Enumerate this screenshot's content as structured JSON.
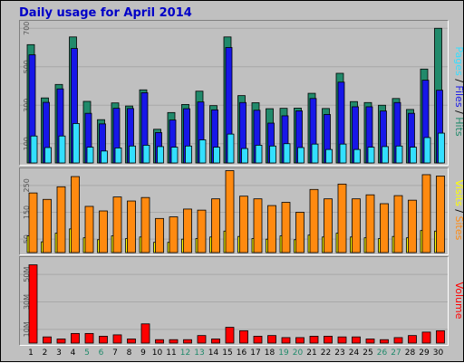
{
  "window": {
    "title": "Daily usage for April 2014"
  },
  "colors": {
    "hits": "#218a6b",
    "files": "#1717e8",
    "pages": "#33dfff",
    "visits": "#ffff00",
    "sites": "#ff8a10",
    "volume": "#ff0000",
    "weekend_tick": "#218a6b",
    "weekday_tick": "#000000"
  },
  "chart_data": [
    {
      "type": "bar",
      "title": "Daily usage for April 2014",
      "panel": "hits-files-pages",
      "categories": [
        "1",
        "2",
        "3",
        "4",
        "5",
        "6",
        "7",
        "8",
        "9",
        "10",
        "11",
        "12",
        "13",
        "14",
        "15",
        "16",
        "17",
        "18",
        "19",
        "20",
        "21",
        "22",
        "23",
        "24",
        "25",
        "26",
        "27",
        "28",
        "29",
        "30"
      ],
      "weekend_days": [
        "5",
        "6",
        "12",
        "13",
        "19",
        "20",
        "26",
        "27"
      ],
      "ylim": [
        0,
        720
      ],
      "yticks": [
        "100",
        "300",
        "500",
        "700"
      ],
      "ytick_values": [
        100,
        300,
        500,
        700
      ],
      "series": [
        {
          "name": "Hits",
          "color_key": "hits",
          "values": [
            615,
            338,
            408,
            655,
            320,
            225,
            312,
            296,
            380,
            175,
            262,
            304,
            373,
            298,
            655,
            350,
            313,
            282,
            284,
            285,
            362,
            283,
            466,
            319,
            314,
            300,
            335,
            278,
            488,
            700
          ]
        },
        {
          "name": "Files",
          "color_key": "files",
          "values": [
            562,
            315,
            385,
            595,
            258,
            203,
            284,
            283,
            365,
            158,
            223,
            282,
            317,
            276,
            600,
            314,
            274,
            207,
            245,
            271,
            335,
            252,
            420,
            292,
            292,
            270,
            314,
            258,
            430,
            378
          ]
        },
        {
          "name": "Pages",
          "color_key": "pages",
          "values": [
            140,
            80,
            140,
            205,
            82,
            62,
            78,
            88,
            92,
            85,
            82,
            88,
            120,
            82,
            150,
            75,
            92,
            88,
            100,
            80,
            98,
            70,
            98,
            70,
            82,
            85,
            88,
            82,
            132,
            155
          ]
        }
      ],
      "right_label": [
        {
          "text": "Pages",
          "color_key": "pages"
        },
        {
          "text": " / ",
          "color_key": "weekday_tick"
        },
        {
          "text": "Files",
          "color_key": "files"
        },
        {
          "text": " / ",
          "color_key": "weekday_tick"
        },
        {
          "text": "Hits",
          "color_key": "hits"
        }
      ]
    },
    {
      "type": "bar",
      "panel": "visits-sites",
      "categories": [
        "1",
        "2",
        "3",
        "4",
        "5",
        "6",
        "7",
        "8",
        "9",
        "10",
        "11",
        "12",
        "13",
        "14",
        "15",
        "16",
        "17",
        "18",
        "19",
        "20",
        "21",
        "22",
        "23",
        "24",
        "25",
        "26",
        "27",
        "28",
        "29",
        "30"
      ],
      "ylim": [
        0,
        300
      ],
      "yticks": [
        "50",
        "150",
        "250"
      ],
      "ytick_values": [
        50,
        150,
        250
      ],
      "series": [
        {
          "name": "Visits",
          "color_key": "visits",
          "values": [
            62,
            40,
            72,
            88,
            55,
            48,
            62,
            52,
            58,
            38,
            38,
            50,
            52,
            58,
            80,
            60,
            52,
            50,
            62,
            48,
            65,
            58,
            72,
            58,
            55,
            52,
            60,
            55,
            82,
            80
          ]
        },
        {
          "name": "Sites",
          "color_key": "sites",
          "values": [
            222,
            198,
            245,
            283,
            172,
            155,
            207,
            192,
            205,
            127,
            133,
            162,
            158,
            200,
            305,
            210,
            200,
            175,
            187,
            150,
            235,
            200,
            255,
            200,
            215,
            182,
            212,
            195,
            290,
            285
          ]
        }
      ],
      "right_label": [
        {
          "text": "Visits",
          "color_key": "visits"
        },
        {
          "text": " / ",
          "color_key": "weekday_tick"
        },
        {
          "text": "Sites",
          "color_key": "sites"
        }
      ]
    },
    {
      "type": "bar",
      "panel": "volume",
      "categories": [
        "1",
        "2",
        "3",
        "4",
        "5",
        "6",
        "7",
        "8",
        "9",
        "10",
        "11",
        "12",
        "13",
        "14",
        "15",
        "16",
        "17",
        "18",
        "19",
        "20",
        "21",
        "22",
        "23",
        "24",
        "25",
        "26",
        "27",
        "28",
        "29",
        "30"
      ],
      "ylim": [
        0,
        60
      ],
      "yticks": [
        "10M",
        "30M",
        "50M"
      ],
      "ytick_values": [
        10,
        30,
        50
      ],
      "unit": "M",
      "series": [
        {
          "name": "Volume",
          "color_key": "volume",
          "values": [
            57,
            4.5,
            3,
            7,
            7,
            5,
            6,
            3,
            14,
            2.5,
            2.5,
            2.5,
            5.5,
            3,
            11.5,
            9,
            5,
            5.5,
            4,
            4,
            5,
            5,
            4.5,
            4.5,
            3,
            2.5,
            4,
            5.5,
            8,
            9
          ]
        }
      ],
      "right_label": [
        {
          "text": "Volume",
          "color_key": "volume"
        }
      ]
    }
  ]
}
